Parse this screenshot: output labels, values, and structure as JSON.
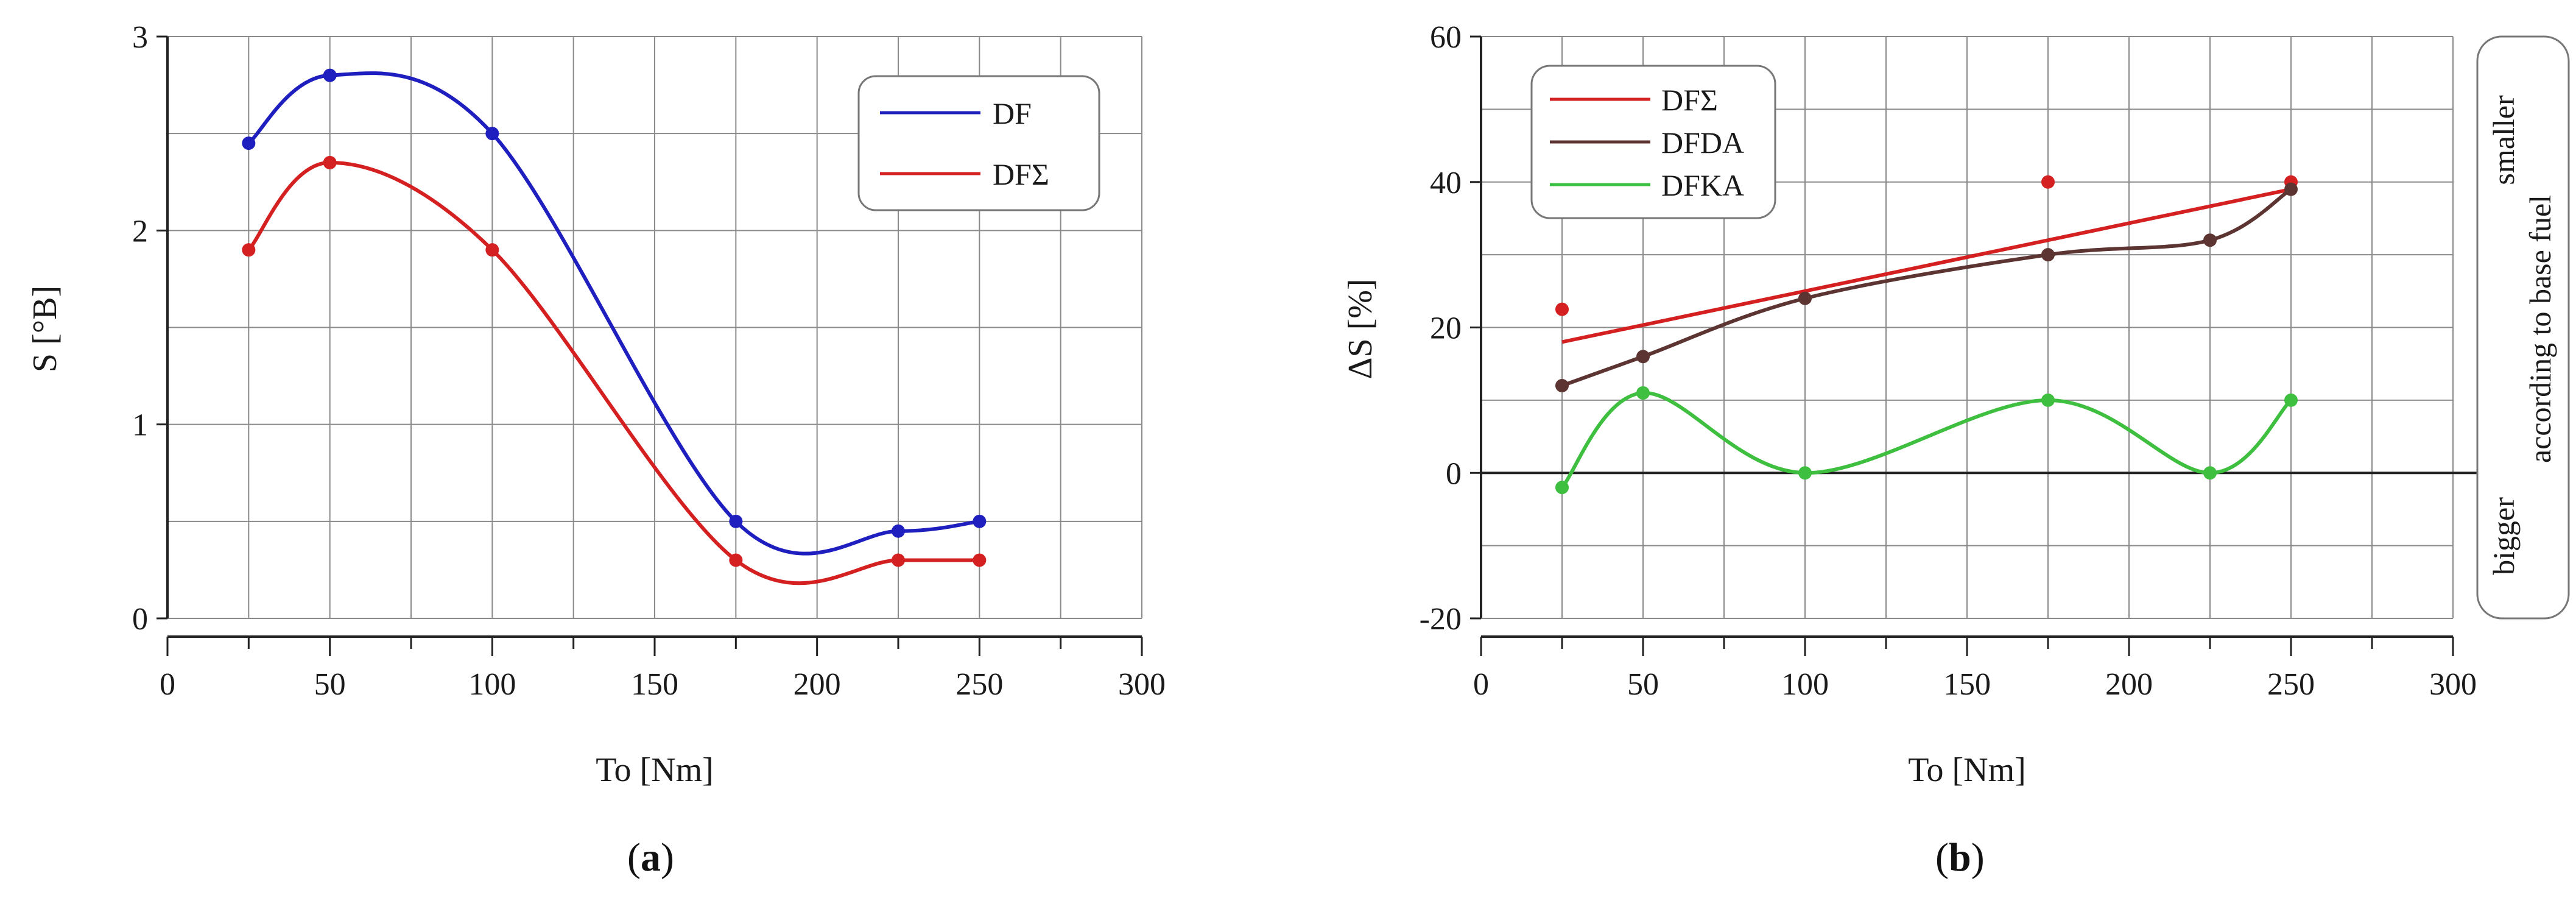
{
  "chart_data": [
    {
      "type": "line",
      "panel_label": "a",
      "xlabel": "To [Nm]",
      "ylabel": "S [°B]",
      "xlim": [
        0,
        300
      ],
      "ylim": [
        0,
        3
      ],
      "x_ticks": [
        0,
        50,
        100,
        150,
        200,
        250,
        300
      ],
      "y_ticks": [
        0,
        1,
        2,
        3
      ],
      "x_minor_step": 25,
      "y_minor_step": 0.5,
      "grid": true,
      "legend_position": "top-right",
      "colors": [
        "#1f1fbf",
        "#d42020"
      ],
      "series": [
        {
          "name": "DF",
          "x": [
            25,
            50,
            100,
            175,
            225,
            250
          ],
          "y": [
            2.45,
            2.8,
            2.5,
            0.5,
            0.45,
            0.5
          ]
        },
        {
          "name": "DFΣ",
          "x": [
            25,
            50,
            100,
            175,
            225,
            250
          ],
          "y": [
            1.9,
            2.35,
            1.9,
            0.3,
            0.3,
            0.3
          ]
        }
      ]
    },
    {
      "type": "line",
      "panel_label": "b",
      "xlabel": "To [Nm]",
      "ylabel": "ΔS [%]",
      "xlim": [
        0,
        300
      ],
      "ylim": [
        -20,
        60
      ],
      "x_ticks": [
        0,
        50,
        100,
        150,
        200,
        250,
        300
      ],
      "y_ticks": [
        -20,
        0,
        20,
        40,
        60
      ],
      "x_minor_step": 25,
      "y_minor_step": 10,
      "grid": true,
      "legend_position": "top-left",
      "colors": [
        "#d42020",
        "#5c3431",
        "#3fbf3f"
      ],
      "series": [
        {
          "name": "DFΣ",
          "x": [
            25,
            175,
            250
          ],
          "y": [
            22.5,
            40,
            40
          ],
          "fit_y": [
            18,
            39
          ]
        },
        {
          "name": "DFDA",
          "x": [
            25,
            50,
            100,
            175,
            225,
            250
          ],
          "y": [
            12,
            16,
            24,
            30,
            32,
            39
          ]
        },
        {
          "name": "DFKA",
          "x": [
            25,
            50,
            100,
            175,
            225,
            250
          ],
          "y": [
            -2,
            11,
            0,
            10,
            0,
            10
          ]
        }
      ],
      "side_annotation": {
        "top": "smaller",
        "middle": "according to base fuel",
        "bottom": "bigger"
      }
    }
  ]
}
